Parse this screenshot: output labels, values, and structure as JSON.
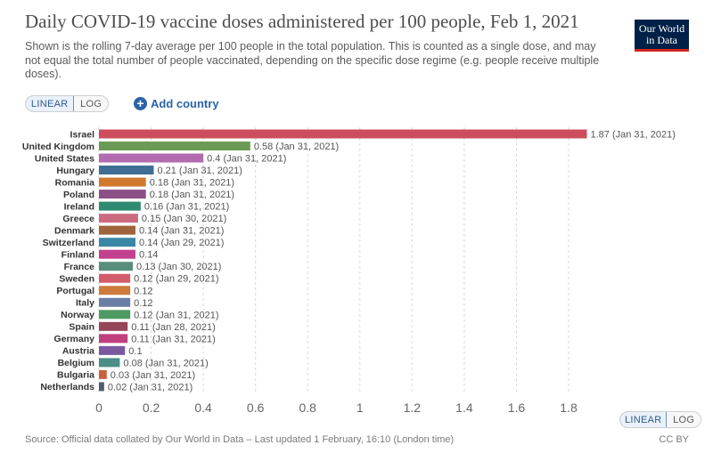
{
  "header": {
    "logo_line1": "Our World",
    "logo_line2": "in Data"
  },
  "controls": {
    "linear_label": "LINEAR",
    "log_label": "LOG",
    "add_country_label": "Add country",
    "add_country_icon": "plus-circle-icon"
  },
  "chart_data": {
    "type": "bar",
    "orientation": "horizontal",
    "title": "Daily COVID-19 vaccine doses administered per 100 people, Feb 1, 2021",
    "subtitle": "Shown is the rolling 7-day average per 100 people in the total population. This is counted as a single dose, and may not equal the total number of people vaccinated, depending on the specific dose regime (e.g. people receive multiple doses).",
    "xlabel": "",
    "ylabel": "",
    "xlim": [
      0,
      1.87
    ],
    "x_ticks": [
      0,
      0.2,
      0.4,
      0.6,
      0.8,
      1,
      1.2,
      1.4,
      1.6,
      1.8
    ],
    "grid": "vertical dashed",
    "categories": [
      "Israel",
      "United Kingdom",
      "United States",
      "Hungary",
      "Romania",
      "Poland",
      "Ireland",
      "Greece",
      "Denmark",
      "Switzerland",
      "Finland",
      "France",
      "Sweden",
      "Portugal",
      "Italy",
      "Norway",
      "Spain",
      "Germany",
      "Austria",
      "Belgium",
      "Bulgaria",
      "Netherlands"
    ],
    "values": [
      1.87,
      0.58,
      0.4,
      0.21,
      0.18,
      0.18,
      0.16,
      0.15,
      0.14,
      0.14,
      0.14,
      0.13,
      0.12,
      0.12,
      0.12,
      0.12,
      0.11,
      0.11,
      0.1,
      0.08,
      0.03,
      0.02
    ],
    "dates": [
      "Jan 31, 2021",
      "Jan 31, 2021",
      "Jan 31, 2021",
      "Jan 31, 2021",
      "Jan 31, 2021",
      "Jan 31, 2021",
      "Jan 31, 2021",
      "Jan 30, 2021",
      "Jan 31, 2021",
      "Jan 29, 2021",
      "",
      "Jan 30, 2021",
      "Jan 29, 2021",
      "",
      "",
      "Jan 31, 2021",
      "Jan 28, 2021",
      "Jan 31, 2021",
      "",
      "Jan 31, 2021",
      "Jan 31, 2021",
      "Jan 31, 2021"
    ],
    "colors": [
      "#cc4e5c",
      "#6b9a54",
      "#b36bb0",
      "#3f6d94",
      "#d1782f",
      "#8c4f86",
      "#2e8b72",
      "#cc6b80",
      "#a0643d",
      "#3a87a5",
      "#c2418e",
      "#578f7c",
      "#d35c6b",
      "#cd7a3c",
      "#6a7ea6",
      "#4e9a62",
      "#954558",
      "#c0407f",
      "#7b59a1",
      "#4a8e86",
      "#c9623b",
      "#505c70"
    ]
  },
  "footer": {
    "source": "Source: Official data collated by Our World in Data – Last updated 1 February, 16:10 (London time)",
    "license": "CC BY",
    "linear_label": "LINEAR",
    "log_label": "LOG"
  },
  "colors": {
    "logo_bg": "#002147",
    "logo_strip": "#ce261e",
    "accent_blue": "#2a63a8"
  }
}
